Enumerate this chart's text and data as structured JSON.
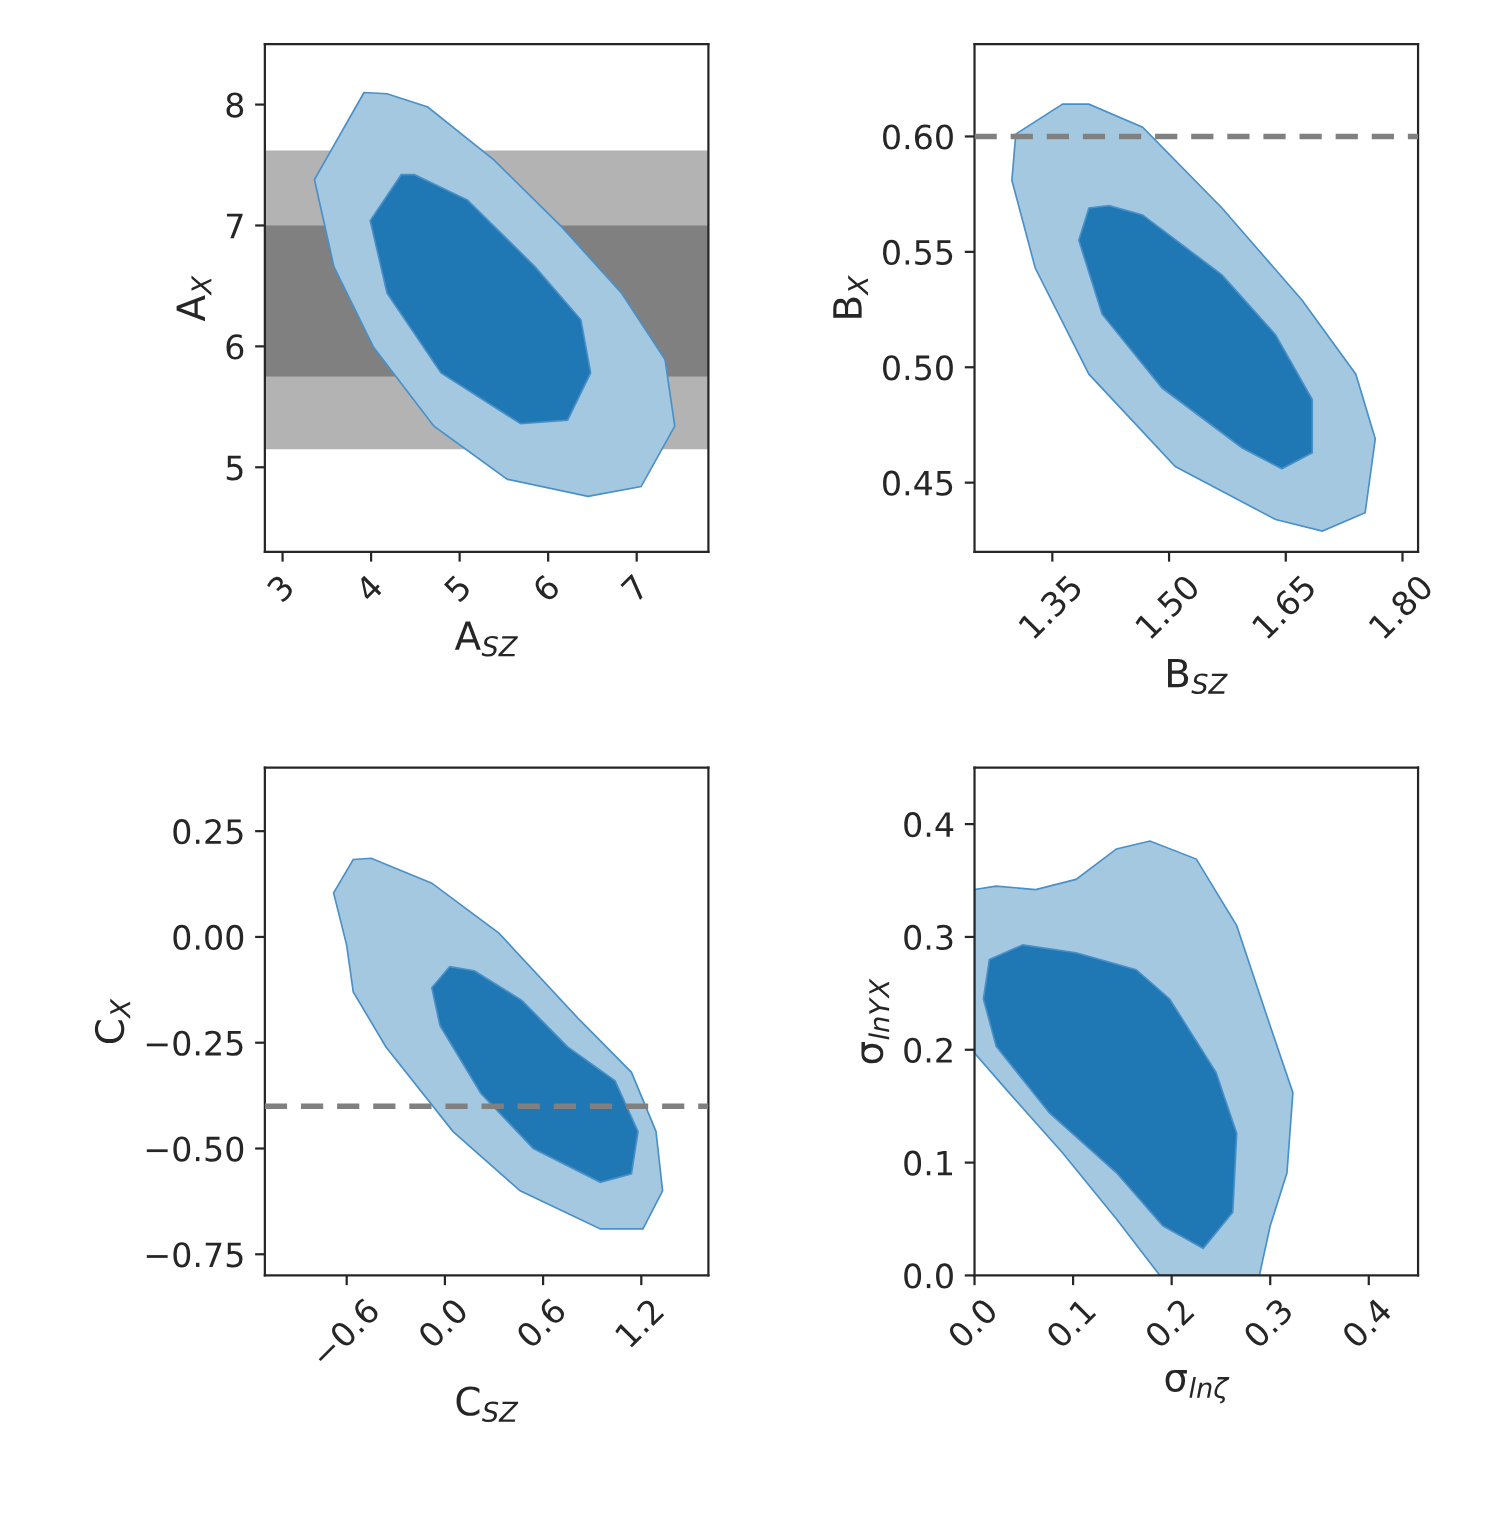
{
  "chart_data": [
    {
      "type": "area",
      "xlabel": "A$_{SZ}$",
      "ylabel": "A$_{X}$",
      "xlim": [
        2.8,
        7.81
      ],
      "ylim": [
        4.3,
        8.5
      ],
      "xticks": [
        3,
        4,
        5,
        6,
        7
      ],
      "yticks": [
        5,
        6,
        7,
        8
      ],
      "grid": false,
      "legend": false,
      "bands": [
        {
          "axis": "y",
          "from": 5.15,
          "to": 7.62,
          "color": "#b3b3b3"
        },
        {
          "axis": "y",
          "from": 5.75,
          "to": 7.0,
          "color": "#808080"
        }
      ],
      "series": [
        {
          "color": "#a5c8e1",
          "x": [
            3.92,
            3.36,
            3.58,
            4.03,
            4.71,
            5.54,
            6.45,
            7.05,
            7.43,
            7.32,
            6.83,
            6.15,
            5.39,
            4.64,
            4.18
          ],
          "values": [
            8.1,
            7.38,
            6.66,
            5.99,
            5.34,
            4.9,
            4.76,
            4.84,
            5.34,
            5.89,
            6.44,
            6.99,
            7.54,
            7.98,
            8.09
          ]
        },
        {
          "color": "#1f77b4",
          "x": [
            4.34,
            3.99,
            4.18,
            4.79,
            5.69,
            6.22,
            6.48,
            6.37,
            5.85,
            5.09,
            4.49
          ],
          "values": [
            7.42,
            7.04,
            6.44,
            5.78,
            5.36,
            5.39,
            5.78,
            6.22,
            6.66,
            7.21,
            7.42
          ]
        }
      ]
    },
    {
      "type": "area",
      "xlabel": "B$_{SZ}$",
      "ylabel": "B$_{X}$",
      "xlim": [
        1.25,
        1.82
      ],
      "ylim": [
        0.42,
        0.64
      ],
      "xticks": [
        {
          "value": 1.35,
          "label": "1.35"
        },
        {
          "value": 1.5,
          "label": "1.50"
        },
        {
          "value": 1.65,
          "label": "1.65"
        },
        {
          "value": 1.8,
          "label": "1.80"
        }
      ],
      "yticks": [
        {
          "value": 0.45,
          "label": "0.45"
        },
        {
          "value": 0.5,
          "label": "0.50"
        },
        {
          "value": 0.55,
          "label": "0.55"
        },
        {
          "value": 0.6,
          "label": "0.60"
        }
      ],
      "grid": false,
      "legend": false,
      "ref_lines": [
        {
          "axis": "y",
          "value": 0.6,
          "color": "#808080",
          "line_style": "dashed"
        }
      ],
      "series": [
        {
          "color": "#a5c8e1",
          "x": [
            1.363,
            1.303,
            1.298,
            1.328,
            1.397,
            1.508,
            1.637,
            1.697,
            1.752,
            1.765,
            1.74,
            1.671,
            1.568,
            1.466,
            1.397
          ],
          "values": [
            0.614,
            0.601,
            0.581,
            0.543,
            0.497,
            0.457,
            0.434,
            0.429,
            0.437,
            0.469,
            0.497,
            0.529,
            0.569,
            0.604,
            0.614
          ]
        },
        {
          "color": "#1f77b4",
          "x": [
            1.397,
            1.384,
            1.414,
            1.491,
            1.594,
            1.645,
            1.684,
            1.684,
            1.637,
            1.568,
            1.466,
            1.423
          ],
          "values": [
            0.569,
            0.555,
            0.523,
            0.491,
            0.465,
            0.456,
            0.463,
            0.486,
            0.514,
            0.54,
            0.566,
            0.57
          ]
        }
      ]
    },
    {
      "type": "area",
      "xlabel": "C$_{SZ}$",
      "ylabel": "C$_{X}$",
      "xlim": [
        -1.1,
        1.61
      ],
      "ylim": [
        -0.8,
        0.4
      ],
      "xticks": [
        {
          "value": -0.6,
          "label": "−0.6"
        },
        {
          "value": 0.0,
          "label": "0.0"
        },
        {
          "value": 0.6,
          "label": "0.6"
        },
        {
          "value": 1.2,
          "label": "1.2"
        }
      ],
      "yticks": [
        {
          "value": -0.75,
          "label": "−0.75"
        },
        {
          "value": -0.5,
          "label": "−0.50"
        },
        {
          "value": -0.25,
          "label": "−0.25"
        },
        {
          "value": 0.0,
          "label": "0.00"
        },
        {
          "value": 0.25,
          "label": "0.25"
        }
      ],
      "grid": false,
      "legend": false,
      "ref_lines": [
        {
          "axis": "y",
          "value": -0.4,
          "color": "#808080",
          "line_style": "dashed"
        }
      ],
      "series": [
        {
          "color": "#a5c8e1",
          "x": [
            -0.68,
            -0.56,
            -0.45,
            -0.08,
            0.33,
            0.82,
            1.14,
            1.29,
            1.33,
            1.21,
            0.95,
            0.46,
            0.05,
            -0.36,
            -0.56,
            -0.6
          ],
          "values": [
            0.104,
            0.183,
            0.186,
            0.127,
            0.009,
            -0.195,
            -0.32,
            -0.46,
            -0.6,
            -0.69,
            -0.69,
            -0.6,
            -0.46,
            -0.26,
            -0.13,
            -0.02
          ]
        },
        {
          "color": "#1f77b4",
          "x": [
            0.03,
            -0.08,
            -0.03,
            0.22,
            0.54,
            0.95,
            1.14,
            1.18,
            1.04,
            0.75,
            0.47,
            0.18
          ],
          "values": [
            -0.07,
            -0.12,
            -0.21,
            -0.37,
            -0.5,
            -0.58,
            -0.56,
            -0.46,
            -0.34,
            -0.26,
            -0.15,
            -0.08
          ]
        }
      ]
    },
    {
      "type": "area",
      "xlabel": "σ$_{lnζ}$",
      "ylabel": "σ$_{lnY}$$_{X}$",
      "xlim": [
        0.0,
        0.45
      ],
      "ylim": [
        0.0,
        0.45
      ],
      "xticks": [
        {
          "value": 0.0,
          "label": "0.0"
        },
        0.1,
        0.2,
        0.3,
        0.4
      ],
      "yticks": [
        {
          "value": 0.0,
          "label": "0.0"
        },
        0.1,
        0.2,
        0.3,
        0.4
      ],
      "grid": false,
      "legend": false,
      "series": [
        {
          "color": "#a5c8e1",
          "x": [
            0.0,
            0.022,
            0.062,
            0.103,
            0.144,
            0.178,
            0.225,
            0.266,
            0.3,
            0.323,
            0.317,
            0.3,
            0.289,
            0.188,
            0.144,
            0.089,
            0.035,
            0.0
          ],
          "values": [
            0.342,
            0.345,
            0.342,
            0.351,
            0.378,
            0.385,
            0.369,
            0.31,
            0.221,
            0.162,
            0.091,
            0.044,
            0.0,
            0.0,
            0.05,
            0.109,
            0.162,
            0.197
          ]
        },
        {
          "color": "#1f77b4",
          "x": [
            0.015,
            0.049,
            0.103,
            0.164,
            0.198,
            0.245,
            0.266,
            0.262,
            0.232,
            0.191,
            0.144,
            0.076,
            0.022,
            0.009
          ],
          "values": [
            0.28,
            0.293,
            0.286,
            0.271,
            0.245,
            0.18,
            0.126,
            0.056,
            0.024,
            0.044,
            0.091,
            0.144,
            0.203,
            0.245
          ]
        }
      ]
    }
  ]
}
